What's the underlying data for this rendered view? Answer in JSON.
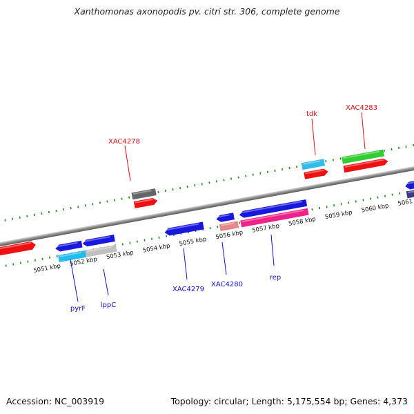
{
  "title": "Xanthomonas axonopodis pv. citri str. 306, complete genome",
  "footer": {
    "accession": "Accession: NC_003919",
    "stats": "Topology: circular; Length: 5,175,554 bp; Genes: 4,373"
  },
  "scale": {
    "unit": "kbp",
    "labels": [
      "5051 kbp",
      "5052 kbp",
      "5053 kbp",
      "5054 kbp",
      "5055 kbp",
      "5056 kbp",
      "5057 kbp",
      "5058 kbp",
      "5059 kbp",
      "5060 kbp",
      "5061 kbp"
    ]
  },
  "colors": {
    "tick": "#228822",
    "backbone": "#888888",
    "forward_label": "#dd1111",
    "reverse_label": "#1111cc"
  },
  "gene_labels": {
    "XAC4278": "XAC4278",
    "tdk": "tdk",
    "XAC4283": "XAC4283",
    "pyrF": "pyrF",
    "lppC": "lppC",
    "XAC4279": "XAC4279",
    "XAC4280": "XAC4280",
    "rep": "rep"
  }
}
